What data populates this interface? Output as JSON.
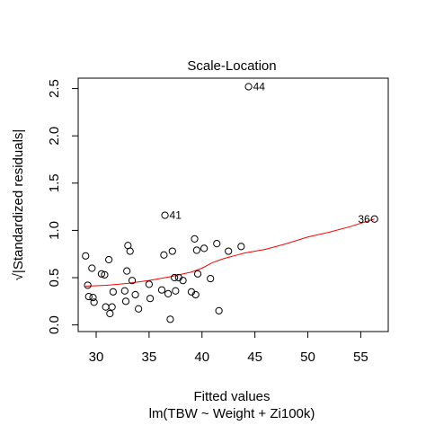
{
  "chart_data": {
    "type": "scatter",
    "title": "Scale-Location",
    "xlabel": "Fitted values",
    "xlabel_sub": "lm(TBW ~ Weight + Zi100k)",
    "ylabel": "√|Standardized residuals|",
    "xlim": [
      28.3,
      57.6
    ],
    "ylim": [
      -0.07,
      2.61
    ],
    "x_ticks": [
      30,
      35,
      40,
      45,
      50,
      55
    ],
    "x_tick_labels": [
      "30",
      "35",
      "40",
      "45",
      "50",
      "55"
    ],
    "y_ticks": [
      0.0,
      0.5,
      1.0,
      1.5,
      2.0,
      2.5
    ],
    "y_tick_labels": [
      "0.0",
      "0.5",
      "1.0",
      "1.5",
      "2.0",
      "2.5"
    ],
    "points": [
      {
        "x": 29.0,
        "y": 0.73
      },
      {
        "x": 29.2,
        "y": 0.42
      },
      {
        "x": 29.3,
        "y": 0.3
      },
      {
        "x": 29.6,
        "y": 0.6
      },
      {
        "x": 29.7,
        "y": 0.29
      },
      {
        "x": 29.8,
        "y": 0.24
      },
      {
        "x": 30.5,
        "y": 0.54
      },
      {
        "x": 30.8,
        "y": 0.53
      },
      {
        "x": 30.9,
        "y": 0.19
      },
      {
        "x": 31.2,
        "y": 0.69
      },
      {
        "x": 31.3,
        "y": 0.12
      },
      {
        "x": 31.5,
        "y": 0.19
      },
      {
        "x": 31.6,
        "y": 0.35
      },
      {
        "x": 32.7,
        "y": 0.36
      },
      {
        "x": 32.8,
        "y": 0.25
      },
      {
        "x": 32.9,
        "y": 0.57
      },
      {
        "x": 33.0,
        "y": 0.84
      },
      {
        "x": 33.2,
        "y": 0.78
      },
      {
        "x": 33.4,
        "y": 0.47
      },
      {
        "x": 33.7,
        "y": 0.32
      },
      {
        "x": 34.0,
        "y": 0.17
      },
      {
        "x": 35.0,
        "y": 0.43
      },
      {
        "x": 35.1,
        "y": 0.28
      },
      {
        "x": 36.2,
        "y": 0.37
      },
      {
        "x": 36.4,
        "y": 0.74
      },
      {
        "x": 36.5,
        "y": 1.16,
        "label": "41"
      },
      {
        "x": 36.8,
        "y": 0.33
      },
      {
        "x": 37.0,
        "y": 0.06
      },
      {
        "x": 37.2,
        "y": 0.78
      },
      {
        "x": 37.4,
        "y": 0.5
      },
      {
        "x": 37.5,
        "y": 0.36
      },
      {
        "x": 37.8,
        "y": 0.5
      },
      {
        "x": 38.2,
        "y": 0.47
      },
      {
        "x": 39.0,
        "y": 0.35
      },
      {
        "x": 39.3,
        "y": 0.91
      },
      {
        "x": 39.4,
        "y": 0.32
      },
      {
        "x": 39.5,
        "y": 0.79
      },
      {
        "x": 39.6,
        "y": 0.54
      },
      {
        "x": 40.2,
        "y": 0.81
      },
      {
        "x": 40.8,
        "y": 0.49
      },
      {
        "x": 41.4,
        "y": 0.86
      },
      {
        "x": 41.6,
        "y": 0.15
      },
      {
        "x": 42.5,
        "y": 0.78
      },
      {
        "x": 43.7,
        "y": 0.83
      },
      {
        "x": 44.4,
        "y": 2.52,
        "label": "44"
      },
      {
        "x": 56.3,
        "y": 1.12,
        "label": "36"
      }
    ],
    "smoother": {
      "color": "#ff0000",
      "x": [
        29.0,
        31.0,
        33.0,
        35.0,
        37.0,
        39.0,
        40.0,
        41.0,
        42.0,
        43.0,
        44.0,
        46.0,
        48.0,
        50.0,
        52.0,
        54.0,
        56.3
      ],
      "y": [
        0.41,
        0.42,
        0.44,
        0.47,
        0.51,
        0.56,
        0.6,
        0.66,
        0.7,
        0.73,
        0.76,
        0.8,
        0.86,
        0.93,
        0.98,
        1.04,
        1.12
      ]
    },
    "grid": false
  }
}
